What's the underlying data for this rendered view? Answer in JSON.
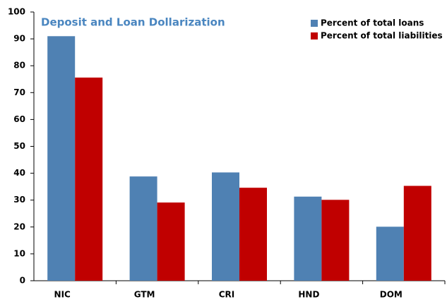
{
  "chart_data": {
    "type": "bar",
    "title": "Deposit and Loan Dollarization",
    "categories": [
      "NIC",
      "GTM",
      "CRI",
      "HND",
      "DOM"
    ],
    "series": [
      {
        "name": "Percent of total loans",
        "color": "#4f81b3",
        "values": [
          91,
          38.8,
          40.3,
          31.3,
          20.1
        ]
      },
      {
        "name": "Percent of total liabilities",
        "color": "#c00000",
        "values": [
          75.6,
          29.1,
          34.6,
          30.1,
          35.3
        ]
      }
    ],
    "ylim": [
      0,
      100
    ],
    "yticks": [
      0,
      10,
      20,
      30,
      40,
      50,
      60,
      70,
      80,
      90,
      100
    ],
    "grid": false,
    "legend": "top-right"
  }
}
